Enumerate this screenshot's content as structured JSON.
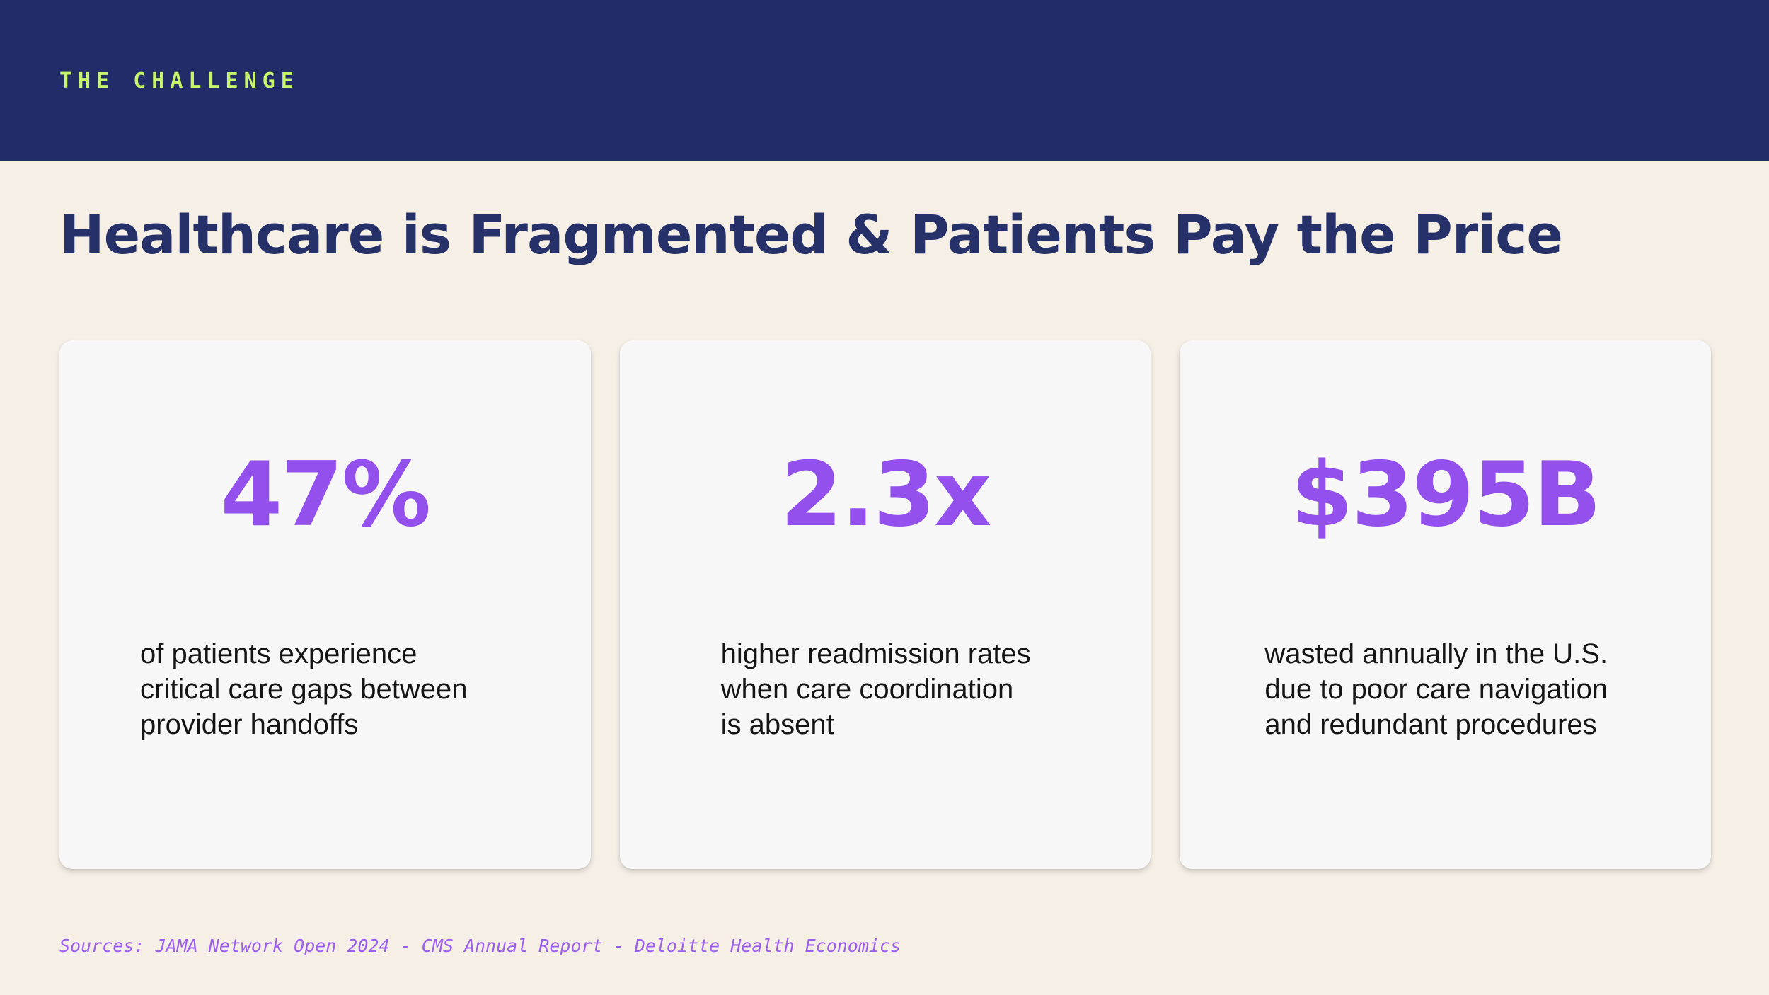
{
  "header": {
    "eyebrow": "THE CHALLENGE",
    "background_color": "#222c68",
    "eyebrow_color": "#c6f46b"
  },
  "title": "Healthcare is Fragmented & Patients Pay the Price",
  "stats": [
    {
      "value": "47%",
      "description_lines": [
        "of patients experience",
        "critical care gaps between",
        "provider handoffs"
      ]
    },
    {
      "value": "2.3x",
      "description_lines": [
        "higher readmission rates",
        "when care coordination",
        "is absent"
      ]
    },
    {
      "value": "$395B",
      "description_lines": [
        "wasted annually in the U.S.",
        "due to poor care navigation",
        "and redundant procedures"
      ]
    }
  ],
  "sources": "Sources: JAMA Network Open 2024 - CMS Annual Report - Deloitte Health Economics",
  "colors": {
    "page_background": "#f5efe6",
    "title": "#253168",
    "accent": "#9350ec",
    "card_background": "#f7f7f7"
  }
}
